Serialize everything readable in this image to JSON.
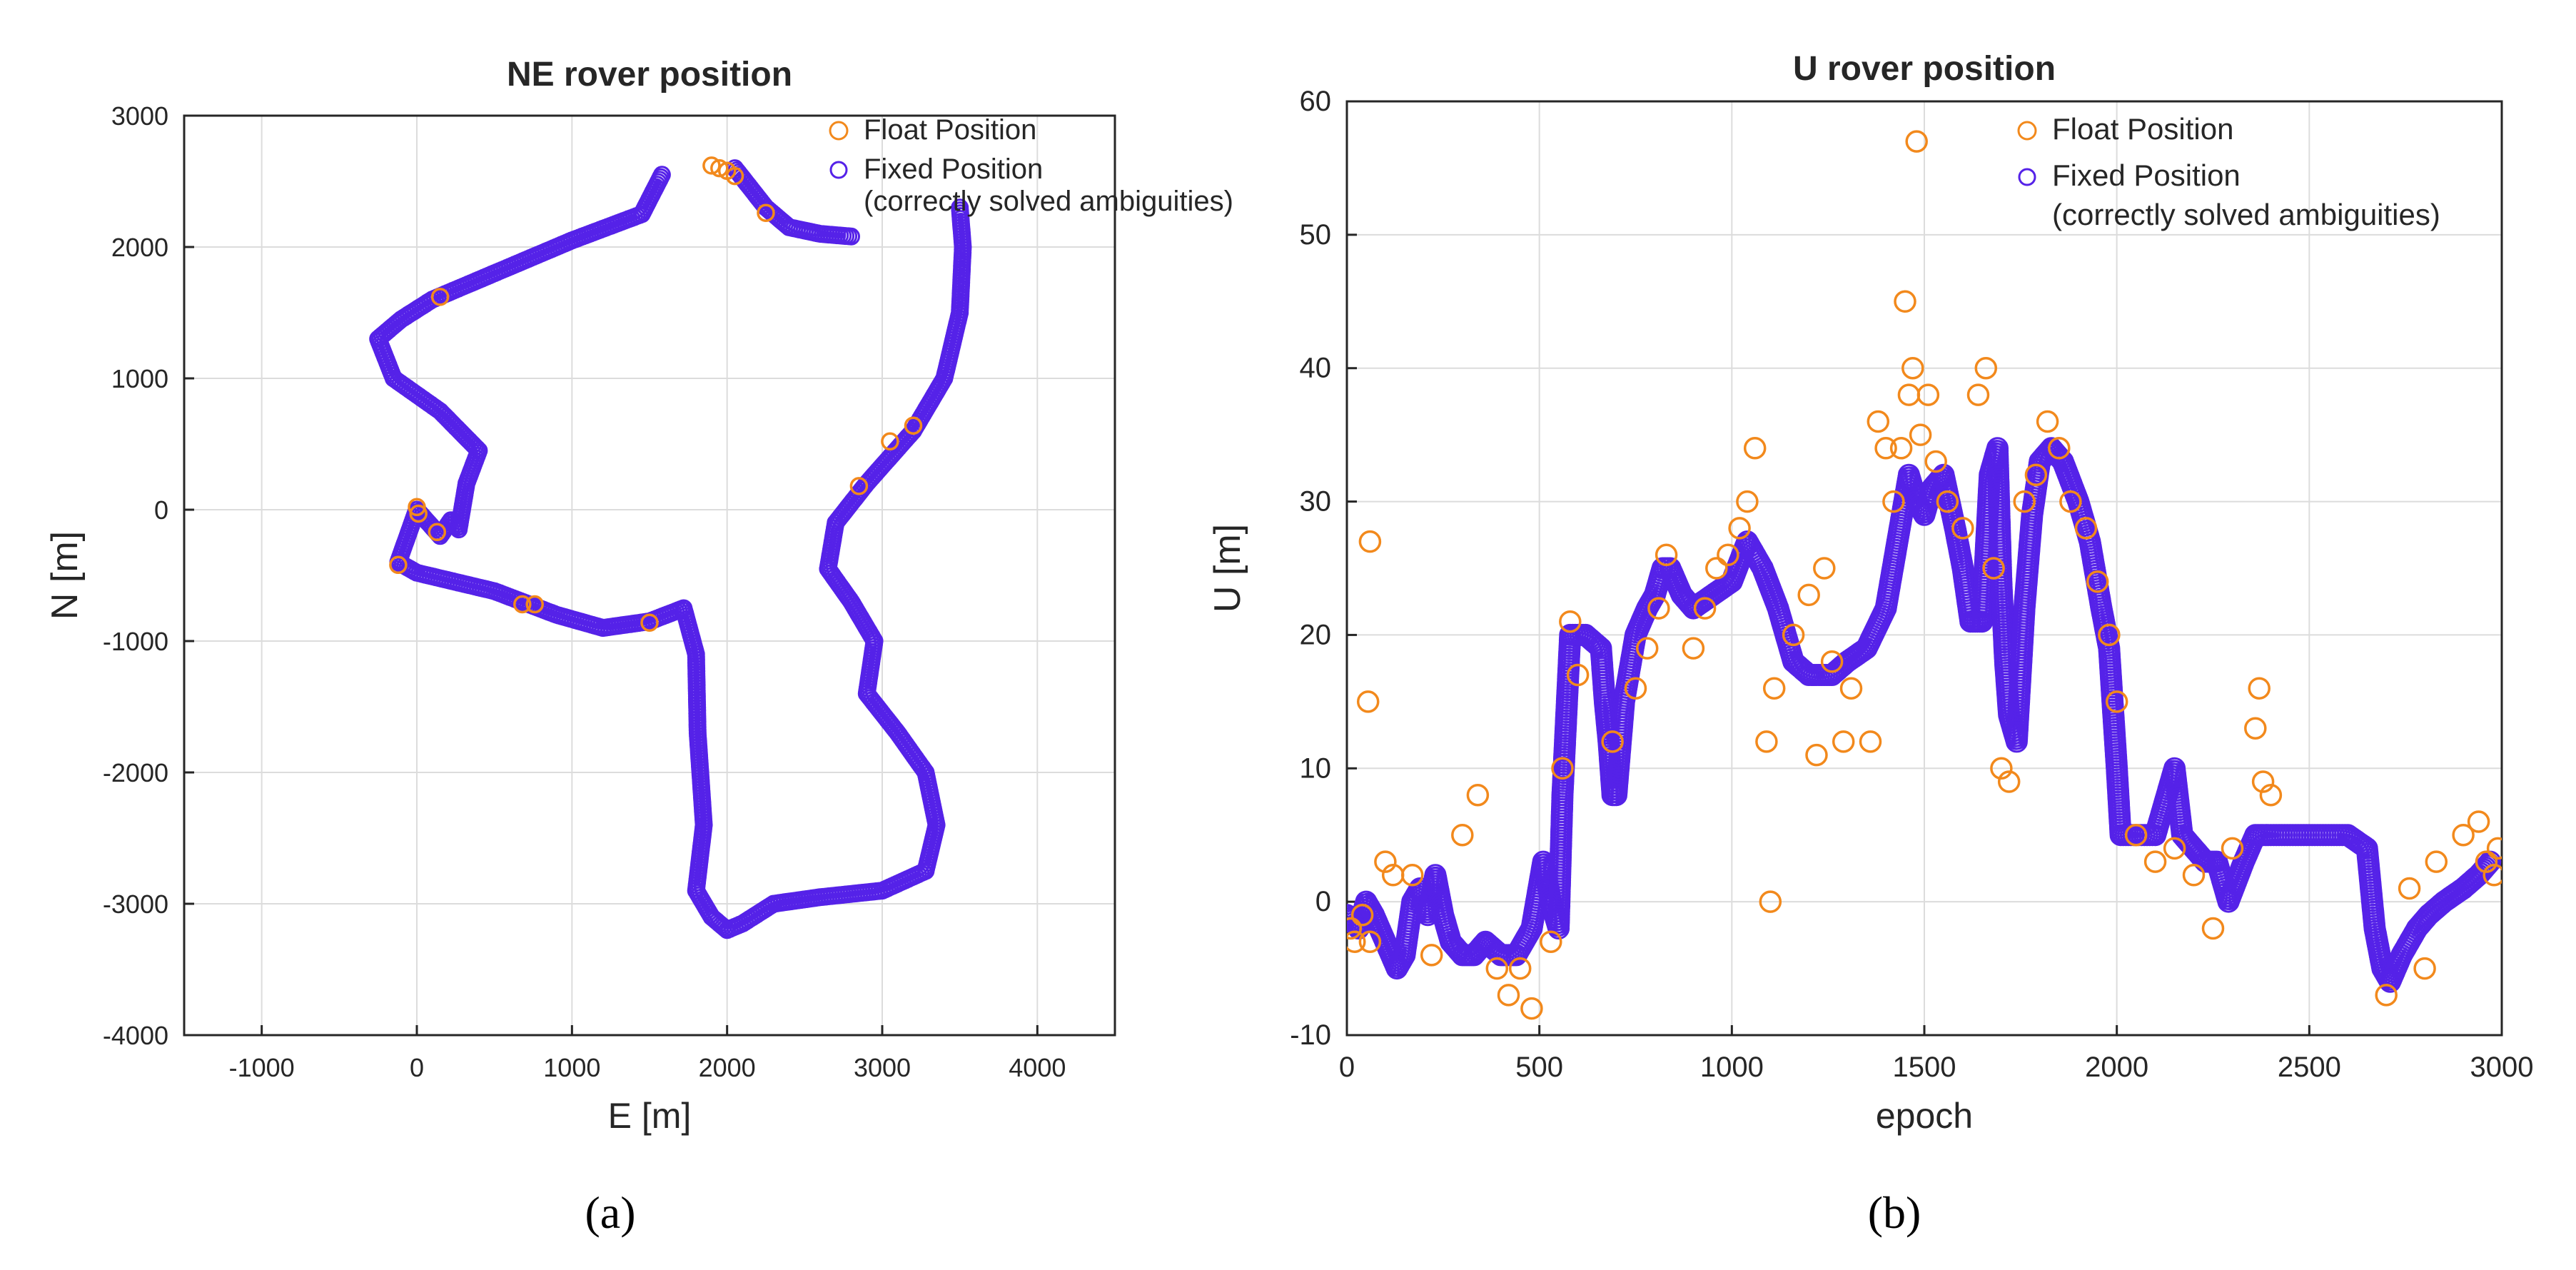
{
  "colors": {
    "float": "#f2891c",
    "fixed": "#5522e8",
    "grid": "#dcdcdc",
    "axis": "#262626"
  },
  "chart_data": [
    {
      "panel": "a",
      "caption": "(a)",
      "type": "scatter",
      "title": "NE rover position",
      "xlabel": "E [m]",
      "ylabel": "N [m]",
      "xlim": [
        -1500,
        4500
      ],
      "ylim": [
        -4000,
        3000
      ],
      "xticks": [
        -1000,
        0,
        1000,
        2000,
        3000,
        4000
      ],
      "yticks": [
        -4000,
        -3000,
        -2000,
        -1000,
        0,
        1000,
        2000,
        3000
      ],
      "grid": true,
      "legend_position": "top-right",
      "legend": {
        "float": "Float Position",
        "fixed_line1": "Fixed Position",
        "fixed_line2": "(correctly solved ambiguities)"
      },
      "track": [
        [
          1580,
          2550
        ],
        [
          1450,
          2250
        ],
        [
          1000,
          2050
        ],
        [
          500,
          1800
        ],
        [
          300,
          1700
        ],
        [
          100,
          1600
        ],
        [
          -100,
          1450
        ],
        [
          -250,
          1300
        ],
        [
          -150,
          1000
        ],
        [
          150,
          750
        ],
        [
          400,
          450
        ],
        [
          320,
          200
        ],
        [
          270,
          -150
        ],
        [
          220,
          -80
        ],
        [
          150,
          -200
        ],
        [
          0,
          0
        ],
        [
          -120,
          -400
        ],
        [
          0,
          -480
        ],
        [
          500,
          -620
        ],
        [
          900,
          -800
        ],
        [
          1200,
          -900
        ],
        [
          1500,
          -850
        ],
        [
          1720,
          -750
        ],
        [
          1800,
          -1100
        ],
        [
          1810,
          -1700
        ],
        [
          1850,
          -2400
        ],
        [
          1800,
          -2900
        ],
        [
          1900,
          -3100
        ],
        [
          2000,
          -3200
        ],
        [
          2100,
          -3150
        ],
        [
          2300,
          -3000
        ],
        [
          2600,
          -2950
        ],
        [
          3000,
          -2900
        ],
        [
          3280,
          -2750
        ],
        [
          3350,
          -2400
        ],
        [
          3280,
          -2000
        ],
        [
          3100,
          -1700
        ],
        [
          2900,
          -1400
        ],
        [
          2950,
          -1000
        ],
        [
          2800,
          -700
        ],
        [
          2650,
          -450
        ],
        [
          2700,
          -100
        ],
        [
          2900,
          200
        ],
        [
          3200,
          600
        ],
        [
          3400,
          1000
        ],
        [
          3500,
          1500
        ],
        [
          3520,
          2000
        ],
        [
          3500,
          2300
        ]
      ],
      "track_start": [
        [
          2050,
          2600
        ],
        [
          2250,
          2300
        ],
        [
          2400,
          2150
        ],
        [
          2600,
          2100
        ],
        [
          2800,
          2080
        ]
      ],
      "float_points": [
        [
          1900,
          2620
        ],
        [
          1950,
          2600
        ],
        [
          2000,
          2580
        ],
        [
          2050,
          2540
        ],
        [
          2250,
          2260
        ],
        [
          150,
          1620
        ],
        [
          0,
          20
        ],
        [
          10,
          -30
        ],
        [
          130,
          -170
        ],
        [
          -120,
          -420
        ],
        [
          680,
          -720
        ],
        [
          760,
          -720
        ],
        [
          1500,
          -860
        ],
        [
          2850,
          180
        ],
        [
          3050,
          520
        ],
        [
          3200,
          640
        ]
      ]
    },
    {
      "panel": "b",
      "caption": "(b)",
      "type": "scatter",
      "title": "U rover position",
      "xlabel": "epoch",
      "ylabel": "U [m]",
      "xlim": [
        0,
        3000
      ],
      "ylim": [
        -10,
        60
      ],
      "xticks": [
        0,
        500,
        1000,
        1500,
        2000,
        2500,
        3000
      ],
      "yticks": [
        -10,
        0,
        10,
        20,
        30,
        40,
        50,
        60
      ],
      "grid": true,
      "legend_position": "top-right",
      "legend": {
        "float": "Float Position",
        "fixed_line1": "Fixed Position",
        "fixed_line2": "(correctly solved ambiguities)"
      },
      "fixed_series": [
        [
          0,
          -1
        ],
        [
          30,
          -2
        ],
        [
          50,
          0
        ],
        [
          70,
          -1
        ],
        [
          100,
          -3
        ],
        [
          130,
          -5
        ],
        [
          150,
          -4
        ],
        [
          170,
          0
        ],
        [
          190,
          1
        ],
        [
          210,
          -1
        ],
        [
          230,
          2
        ],
        [
          250,
          -1
        ],
        [
          270,
          -3
        ],
        [
          300,
          -4
        ],
        [
          330,
          -4
        ],
        [
          360,
          -3
        ],
        [
          400,
          -4
        ],
        [
          440,
          -4
        ],
        [
          480,
          -2
        ],
        [
          510,
          3
        ],
        [
          530,
          0
        ],
        [
          550,
          -2
        ],
        [
          560,
          8
        ],
        [
          570,
          14
        ],
        [
          580,
          20
        ],
        [
          620,
          20
        ],
        [
          660,
          19
        ],
        [
          670,
          15
        ],
        [
          680,
          12
        ],
        [
          690,
          8
        ],
        [
          700,
          8
        ],
        [
          720,
          15
        ],
        [
          750,
          20
        ],
        [
          780,
          22
        ],
        [
          800,
          23
        ],
        [
          820,
          25
        ],
        [
          840,
          25
        ],
        [
          870,
          23
        ],
        [
          900,
          22
        ],
        [
          950,
          23
        ],
        [
          1000,
          24
        ],
        [
          1040,
          27
        ],
        [
          1080,
          25
        ],
        [
          1120,
          22
        ],
        [
          1160,
          18
        ],
        [
          1200,
          17
        ],
        [
          1260,
          17
        ],
        [
          1300,
          18
        ],
        [
          1350,
          19
        ],
        [
          1400,
          22
        ],
        [
          1430,
          27
        ],
        [
          1460,
          32
        ],
        [
          1480,
          30
        ],
        [
          1500,
          29
        ],
        [
          1520,
          31
        ],
        [
          1550,
          32
        ],
        [
          1580,
          28
        ],
        [
          1600,
          25
        ],
        [
          1620,
          21
        ],
        [
          1650,
          21
        ],
        [
          1670,
          32
        ],
        [
          1690,
          34
        ],
        [
          1700,
          24
        ],
        [
          1710,
          18
        ],
        [
          1720,
          14
        ],
        [
          1740,
          12
        ],
        [
          1760,
          22
        ],
        [
          1780,
          29
        ],
        [
          1800,
          33
        ],
        [
          1830,
          34
        ],
        [
          1860,
          33
        ],
        [
          1900,
          30
        ],
        [
          1930,
          27
        ],
        [
          1960,
          22
        ],
        [
          1980,
          19
        ],
        [
          2000,
          10
        ],
        [
          2010,
          5
        ],
        [
          2050,
          5
        ],
        [
          2100,
          5
        ],
        [
          2130,
          8
        ],
        [
          2150,
          10
        ],
        [
          2170,
          5
        ],
        [
          2200,
          4
        ],
        [
          2230,
          3
        ],
        [
          2260,
          3
        ],
        [
          2290,
          0
        ],
        [
          2330,
          3
        ],
        [
          2360,
          5
        ],
        [
          2400,
          5
        ],
        [
          2500,
          5
        ],
        [
          2600,
          5
        ],
        [
          2650,
          4
        ],
        [
          2670,
          -2
        ],
        [
          2690,
          -5
        ],
        [
          2710,
          -6
        ],
        [
          2740,
          -4
        ],
        [
          2780,
          -2
        ],
        [
          2810,
          -1
        ],
        [
          2850,
          0
        ],
        [
          2900,
          1
        ],
        [
          2940,
          2
        ],
        [
          2970,
          3
        ]
      ],
      "float_points": [
        [
          10,
          -2
        ],
        [
          20,
          -3
        ],
        [
          40,
          -1
        ],
        [
          60,
          -3
        ],
        [
          55,
          15
        ],
        [
          60,
          27
        ],
        [
          100,
          3
        ],
        [
          120,
          2
        ],
        [
          170,
          2
        ],
        [
          220,
          -4
        ],
        [
          300,
          5
        ],
        [
          340,
          8
        ],
        [
          390,
          -5
        ],
        [
          420,
          -7
        ],
        [
          450,
          -5
        ],
        [
          480,
          -8
        ],
        [
          530,
          -3
        ],
        [
          560,
          10
        ],
        [
          580,
          21
        ],
        [
          600,
          17
        ],
        [
          690,
          12
        ],
        [
          750,
          16
        ],
        [
          780,
          19
        ],
        [
          810,
          22
        ],
        [
          830,
          26
        ],
        [
          900,
          19
        ],
        [
          930,
          22
        ],
        [
          960,
          25
        ],
        [
          990,
          26
        ],
        [
          1020,
          28
        ],
        [
          1040,
          30
        ],
        [
          1060,
          34
        ],
        [
          1090,
          12
        ],
        [
          1100,
          0
        ],
        [
          1110,
          16
        ],
        [
          1160,
          20
        ],
        [
          1200,
          23
        ],
        [
          1220,
          11
        ],
        [
          1240,
          25
        ],
        [
          1260,
          18
        ],
        [
          1290,
          12
        ],
        [
          1310,
          16
        ],
        [
          1360,
          12
        ],
        [
          1380,
          36
        ],
        [
          1400,
          34
        ],
        [
          1420,
          30
        ],
        [
          1440,
          34
        ],
        [
          1450,
          45
        ],
        [
          1460,
          38
        ],
        [
          1470,
          40
        ],
        [
          1490,
          35
        ],
        [
          1510,
          38
        ],
        [
          1530,
          33
        ],
        [
          1560,
          30
        ],
        [
          1600,
          28
        ],
        [
          1640,
          38
        ],
        [
          1660,
          40
        ],
        [
          1680,
          25
        ],
        [
          1700,
          10
        ],
        [
          1720,
          9
        ],
        [
          1760,
          30
        ],
        [
          1790,
          32
        ],
        [
          1820,
          36
        ],
        [
          1850,
          34
        ],
        [
          1880,
          30
        ],
        [
          1920,
          28
        ],
        [
          1950,
          24
        ],
        [
          1980,
          20
        ],
        [
          2000,
          15
        ],
        [
          2050,
          5
        ],
        [
          2100,
          3
        ],
        [
          2150,
          4
        ],
        [
          2200,
          2
        ],
        [
          2250,
          -2
        ],
        [
          2300,
          4
        ],
        [
          2360,
          13
        ],
        [
          2370,
          16
        ],
        [
          2380,
          9
        ],
        [
          2400,
          8
        ],
        [
          2700,
          -7
        ],
        [
          2760,
          1
        ],
        [
          2800,
          -5
        ],
        [
          2830,
          3
        ],
        [
          2900,
          5
        ],
        [
          2940,
          6
        ],
        [
          2960,
          3
        ],
        [
          2980,
          2
        ],
        [
          2990,
          4
        ],
        [
          1480,
          57
        ]
      ]
    }
  ]
}
